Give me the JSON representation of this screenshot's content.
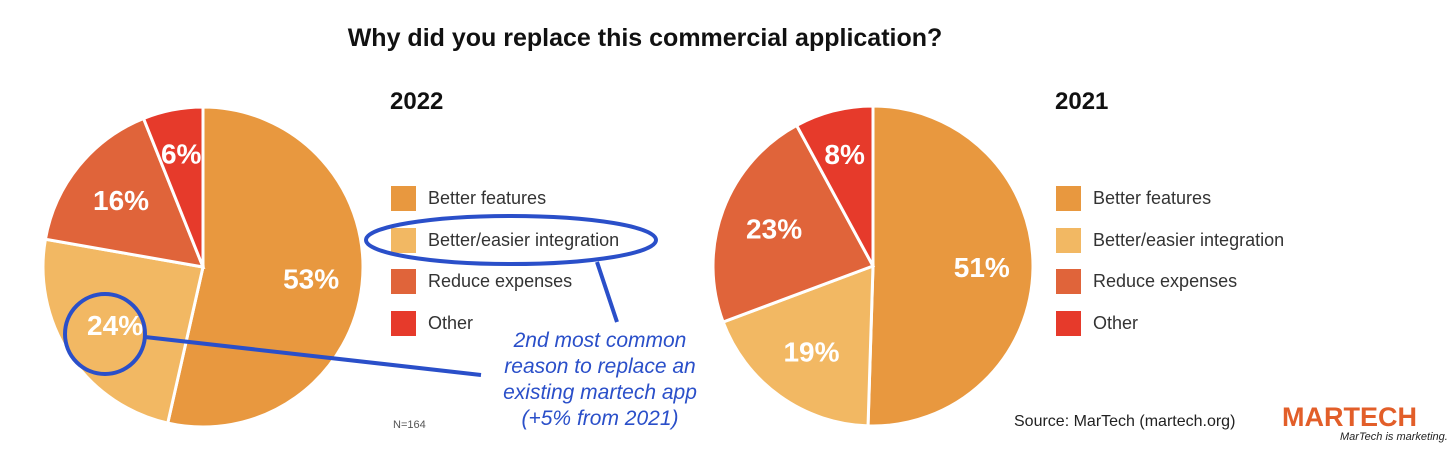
{
  "title": "Why did you replace this commercial application?",
  "chart_data": [
    {
      "type": "pie",
      "title": "2022",
      "categories": [
        "Better features",
        "Better/easier integration",
        "Reduce expenses",
        "Other"
      ],
      "values": [
        53,
        24,
        16,
        6
      ],
      "labels": [
        "53%",
        "24%",
        "16%",
        "6%"
      ],
      "colors": [
        "#e8983f",
        "#f2b863",
        "#e0643a",
        "#e63a2b"
      ],
      "legend": "right",
      "note": "N=164"
    },
    {
      "type": "pie",
      "title": "2021",
      "categories": [
        "Better features",
        "Better/easier integration",
        "Reduce expenses",
        "Other"
      ],
      "values": [
        51,
        19,
        23,
        8
      ],
      "labels": [
        "51%",
        "19%",
        "23%",
        "8%"
      ],
      "colors": [
        "#e8983f",
        "#f2b863",
        "#e0643a",
        "#e63a2b"
      ],
      "legend": "right"
    }
  ],
  "annotation": {
    "lines": [
      "2nd most common",
      "reason to replace an",
      "existing martech app",
      "(+5% from 2021)"
    ],
    "color": "#2a4fc9"
  },
  "footer": {
    "source": "Source: MarTech (martech.org)",
    "brand": "MARTECH",
    "tagline": "MarTech is marketing."
  }
}
